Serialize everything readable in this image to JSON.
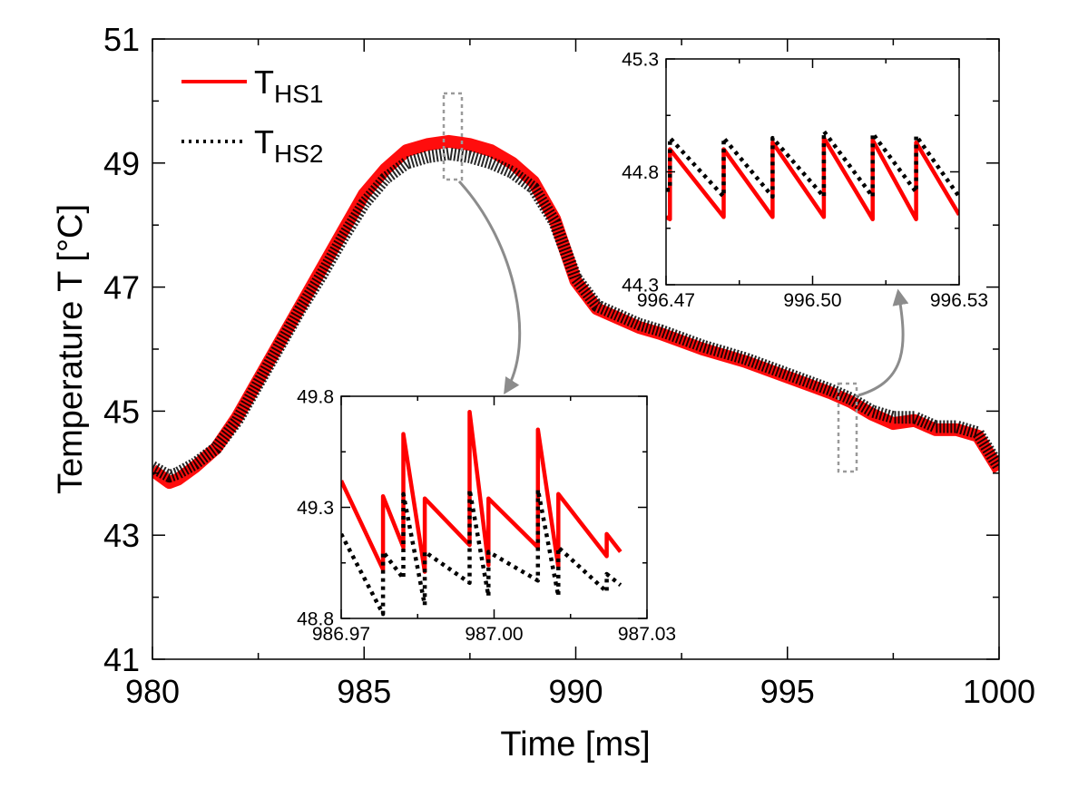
{
  "chart_data": [
    {
      "type": "line",
      "xlabel": "Time [ms]",
      "ylabel": "Temperature T [°C]",
      "xlim": [
        980,
        1000
      ],
      "ylim": [
        41,
        51
      ],
      "xticks": [
        980,
        985,
        990,
        995,
        1000
      ],
      "xtick_labels": [
        "980",
        "985",
        "990",
        "995",
        "1000"
      ],
      "yticks": [
        41,
        43,
        45,
        47,
        49,
        51
      ],
      "ytick_labels": [
        "41",
        "43",
        "45",
        "47",
        "49",
        "51"
      ],
      "grid": false,
      "legend_position": "top-left",
      "series": [
        {
          "name": "THS1",
          "name_main": "T",
          "name_sub": "HS1",
          "color": "#ff0000",
          "style": "solid",
          "x": [
            980.0,
            980.4,
            980.6,
            981.0,
            981.5,
            982.0,
            982.5,
            983.0,
            983.5,
            984.0,
            984.5,
            985.0,
            985.5,
            986.0,
            986.5,
            987.0,
            987.5,
            988.0,
            988.5,
            989.0,
            989.5,
            990.0,
            990.5,
            991.0,
            991.5,
            992.0,
            993.0,
            994.0,
            995.0,
            996.0,
            996.5,
            997.0,
            997.5,
            998.0,
            998.5,
            999.0,
            999.5,
            1000.0
          ],
          "y": [
            44.05,
            43.85,
            43.9,
            44.1,
            44.4,
            44.9,
            45.5,
            46.1,
            46.7,
            47.3,
            47.9,
            48.5,
            48.9,
            49.2,
            49.3,
            49.35,
            49.3,
            49.2,
            49.0,
            48.7,
            48.1,
            47.1,
            46.65,
            46.5,
            46.35,
            46.25,
            46.0,
            45.8,
            45.55,
            45.3,
            45.15,
            44.95,
            44.8,
            44.85,
            44.7,
            44.7,
            44.6,
            44.05
          ]
        },
        {
          "name": "THS2",
          "name_main": "T",
          "name_sub": "HS2",
          "color": "#000000",
          "style": "dotted",
          "x": [
            980.0,
            980.4,
            980.6,
            981.0,
            981.5,
            982.0,
            982.5,
            983.0,
            983.5,
            984.0,
            984.5,
            985.0,
            985.5,
            986.0,
            986.5,
            987.0,
            987.5,
            988.0,
            988.5,
            989.0,
            989.5,
            990.0,
            990.5,
            991.0,
            991.5,
            992.0,
            993.0,
            994.0,
            995.0,
            996.0,
            996.5,
            997.0,
            997.5,
            998.0,
            998.5,
            999.0,
            999.5,
            1000.0
          ],
          "y": [
            44.1,
            43.95,
            44.0,
            44.15,
            44.4,
            44.85,
            45.45,
            46.05,
            46.65,
            47.2,
            47.8,
            48.35,
            48.75,
            49.0,
            49.1,
            49.15,
            49.1,
            49.0,
            48.85,
            48.6,
            48.05,
            47.15,
            46.7,
            46.55,
            46.4,
            46.3,
            46.05,
            45.85,
            45.6,
            45.35,
            45.2,
            45.0,
            44.9,
            44.9,
            44.75,
            44.75,
            44.65,
            44.1
          ]
        }
      ]
    },
    {
      "type": "line",
      "inset": "bottom",
      "xlim": [
        986.97,
        987.03
      ],
      "ylim": [
        48.8,
        49.8
      ],
      "xticks": [
        986.97,
        987.0,
        987.03
      ],
      "xtick_labels": [
        "986.97",
        "987.00",
        "987.03"
      ],
      "yticks": [
        48.8,
        49.3,
        49.8
      ],
      "ytick_labels": [
        "48.8",
        "49.3",
        "49.8"
      ],
      "series": [
        {
          "name": "THS1",
          "color": "#ff0000",
          "style": "solid",
          "x": [
            986.97,
            986.9782,
            986.9782,
            986.9822,
            986.9822,
            986.9864,
            986.9864,
            986.9952,
            986.9952,
            986.9989,
            986.9989,
            987.0086,
            987.0086,
            987.0126,
            987.0126,
            987.0221,
            987.0221,
            987.0248
          ],
          "y": [
            49.42,
            49.02,
            49.35,
            49.12,
            49.63,
            49.01,
            49.34,
            49.13,
            49.73,
            49.04,
            49.34,
            49.12,
            49.65,
            49.03,
            49.36,
            49.08,
            49.18,
            49.1
          ]
        },
        {
          "name": "THS2",
          "color": "#000000",
          "style": "dotted",
          "x": [
            986.97,
            986.9782,
            986.9782,
            986.9822,
            986.9822,
            986.9864,
            986.9864,
            986.9952,
            986.9952,
            986.9989,
            986.9989,
            987.0086,
            987.0086,
            987.0126,
            987.0126,
            987.0221,
            987.0221,
            987.0248
          ],
          "y": [
            49.18,
            48.82,
            49.1,
            48.98,
            49.36,
            48.86,
            49.1,
            48.96,
            49.38,
            48.9,
            49.1,
            48.97,
            49.38,
            48.9,
            49.12,
            48.92,
            49.0,
            48.95
          ]
        }
      ]
    },
    {
      "type": "line",
      "inset": "top-right",
      "xlim": [
        996.47,
        996.53
      ],
      "ylim": [
        44.3,
        45.3
      ],
      "xticks": [
        996.47,
        996.5,
        996.53
      ],
      "xtick_labels": [
        "996.47",
        "996.50",
        "996.53"
      ],
      "yticks": [
        44.3,
        44.8,
        45.3
      ],
      "ytick_labels": [
        "44.3",
        "44.8",
        "45.3"
      ],
      "series": [
        {
          "name": "THS1",
          "color": "#ff0000",
          "style": "solid",
          "x": [
            996.47,
            996.4708,
            996.4708,
            996.4818,
            996.4818,
            996.4918,
            996.4918,
            996.5023,
            996.5023,
            996.5123,
            996.5123,
            996.5212,
            996.5212,
            996.53
          ],
          "y": [
            44.6,
            44.59,
            44.9,
            44.6,
            44.9,
            44.6,
            44.93,
            44.6,
            44.95,
            44.59,
            44.94,
            44.59,
            44.93,
            44.61
          ]
        },
        {
          "name": "THS2",
          "color": "#000000",
          "style": "dotted",
          "x": [
            996.47,
            996.4708,
            996.4708,
            996.4818,
            996.4818,
            996.4918,
            996.4918,
            996.5023,
            996.5023,
            996.5123,
            996.5123,
            996.5212,
            996.5212,
            996.53
          ],
          "y": [
            44.72,
            44.72,
            44.95,
            44.69,
            44.95,
            44.69,
            44.95,
            44.69,
            44.98,
            44.69,
            44.97,
            44.71,
            44.96,
            44.69
          ]
        }
      ]
    }
  ]
}
